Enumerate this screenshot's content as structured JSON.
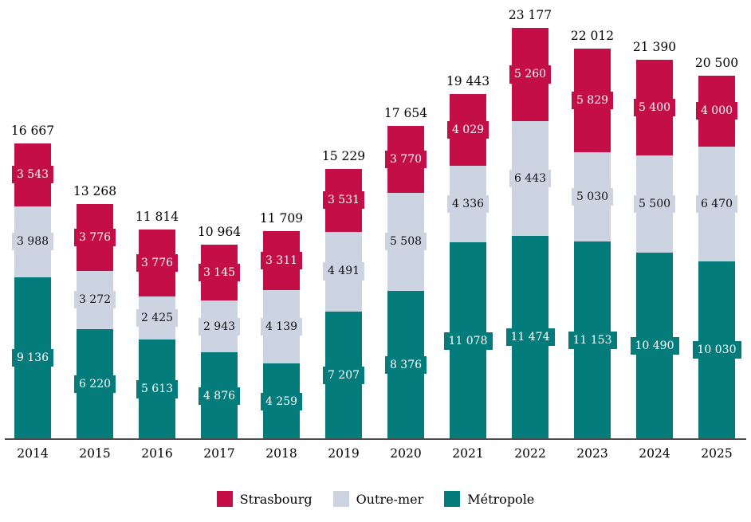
{
  "chart_data": {
    "type": "bar",
    "stacked": true,
    "title": "",
    "xlabel": "",
    "ylabel": "",
    "grid": false,
    "ylim": [
      0,
      23177
    ],
    "number_format": "space thousands separator (French)",
    "categories": [
      "2014",
      "2015",
      "2016",
      "2017",
      "2018",
      "2019",
      "2020",
      "2021",
      "2022",
      "2023",
      "2024",
      "2025"
    ],
    "series": [
      {
        "name": "Strasbourg",
        "color": "#C40E48",
        "label_text_color": "#FFFFFF",
        "values": [
          3543,
          3776,
          3776,
          3145,
          3311,
          3531,
          3770,
          4029,
          5260,
          5829,
          5400,
          4000
        ]
      },
      {
        "name": "Outre-mer",
        "color": "#CCD4E2",
        "label_text_color": "#111111",
        "values": [
          3988,
          3272,
          2425,
          2943,
          4139,
          4491,
          5508,
          4336,
          6443,
          5030,
          5500,
          6470
        ]
      },
      {
        "name": "Métropole",
        "color": "#047C7B",
        "label_text_color": "#FFFFFF",
        "values": [
          9136,
          6220,
          5613,
          4876,
          4259,
          7207,
          8376,
          11078,
          11474,
          11153,
          10490,
          10030
        ]
      }
    ],
    "stack_order_bottom_to_top": [
      "Métropole",
      "Outre-mer",
      "Strasbourg"
    ],
    "totals": [
      16667,
      13268,
      11814,
      10964,
      11709,
      15229,
      17654,
      19443,
      23177,
      22012,
      21390,
      20500
    ],
    "legend": {
      "position": "bottom",
      "items": [
        "Strasbourg",
        "Outre-mer",
        "Métropole"
      ]
    }
  },
  "colors": {
    "background": "#FFFFFF",
    "axis_line": "#4C4C4C",
    "total_label_text": "#000000"
  }
}
